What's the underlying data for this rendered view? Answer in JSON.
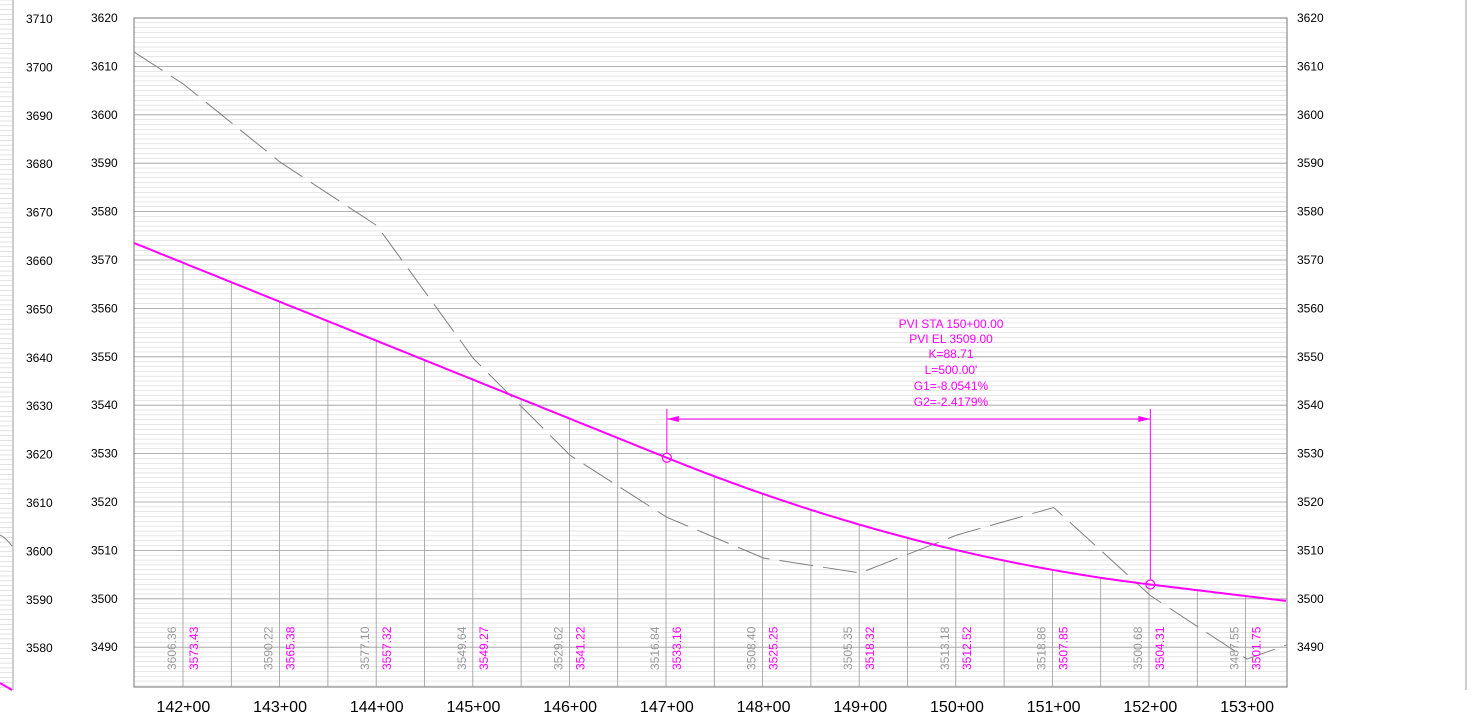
{
  "profile": {
    "left_panel_elevations": [
      "3710",
      "3700",
      "3690",
      "3680",
      "3670",
      "3660",
      "3650",
      "3640",
      "3630",
      "3620",
      "3610",
      "3600",
      "3590",
      "3580"
    ],
    "elevation_labels": [
      "3620",
      "3610",
      "3600",
      "3590",
      "3580",
      "3570",
      "3560",
      "3550",
      "3540",
      "3530",
      "3520",
      "3510",
      "3500",
      "3490"
    ],
    "stations": [
      "142+00",
      "143+00",
      "144+00",
      "145+00",
      "146+00",
      "147+00",
      "148+00",
      "149+00",
      "150+00",
      "151+00",
      "152+00",
      "153+00"
    ],
    "existing_ground_labels": [
      "3606.36",
      "3590.22",
      "3577.10",
      "3549.64",
      "3529.62",
      "3516.84",
      "3508.40",
      "3505.35",
      "3513.18",
      "3518.86",
      "3500.68",
      "3487.55"
    ],
    "proposed_grade_labels": [
      "3573.43",
      "3565.38",
      "3557.32",
      "3549.27",
      "3541.22",
      "3533.16",
      "3525.25",
      "3518.32",
      "3512.52",
      "3507.85",
      "3504.31",
      "3501.75"
    ],
    "pvi_annotation": {
      "line1": "PVI STA 150+00.00",
      "line2": "PVI EL 3509.00",
      "line3": "K=88.71",
      "line4": "L=500.00'",
      "line5": "G1=-8.0541%",
      "line6": "G2=-2.4179%"
    },
    "colors": {
      "proposed_grade": "#ff00ff",
      "existing_ground": "#808080",
      "grid_major": "#9a9a9a",
      "grid_minor": "#cfcfcf",
      "text": "#000000"
    }
  },
  "chart_data": {
    "type": "line",
    "xlabel": "",
    "ylabel": "",
    "x": [
      "142+00",
      "143+00",
      "144+00",
      "145+00",
      "146+00",
      "147+00",
      "148+00",
      "149+00",
      "150+00",
      "151+00",
      "152+00",
      "153+00"
    ],
    "ylim": [
      3480,
      3620
    ],
    "series": [
      {
        "values": [
          3606.36,
          3590.22,
          3577.1,
          3549.64,
          3529.62,
          3516.84,
          3508.4,
          3505.35,
          3513.18,
          3518.86,
          3500.68,
          3487.55
        ]
      },
      {
        "values": [
          3573.43,
          3565.38,
          3557.32,
          3549.27,
          3541.22,
          3533.16,
          3525.25,
          3518.32,
          3512.52,
          3507.85,
          3504.31,
          3501.75
        ]
      }
    ],
    "grid": true
  }
}
